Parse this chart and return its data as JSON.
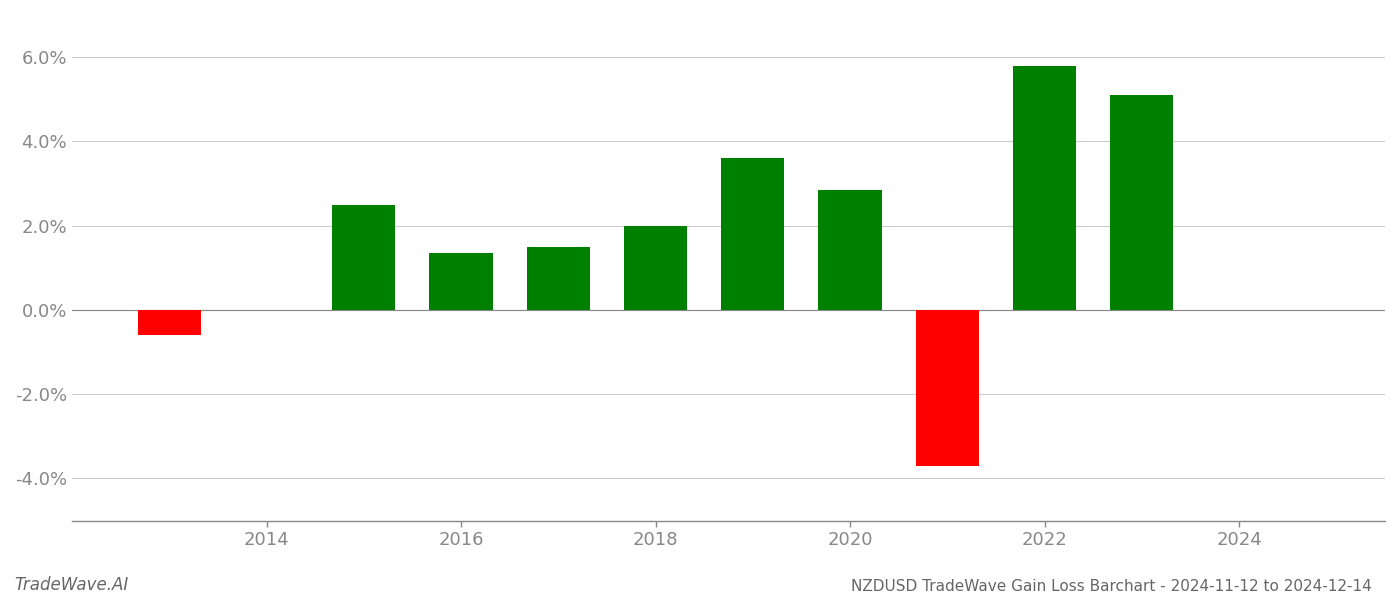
{
  "years": [
    2013,
    2015,
    2016,
    2017,
    2018,
    2019,
    2020,
    2021,
    2022,
    2023
  ],
  "values": [
    -0.006,
    0.025,
    0.0135,
    0.015,
    0.02,
    0.036,
    0.0285,
    -0.037,
    0.058,
    0.051
  ],
  "bar_colors": [
    "#ff0000",
    "#008000",
    "#008000",
    "#008000",
    "#008000",
    "#008000",
    "#008000",
    "#ff0000",
    "#008000",
    "#008000"
  ],
  "title": "NZDUSD TradeWave Gain Loss Barchart - 2024-11-12 to 2024-12-14",
  "watermark": "TradeWave.AI",
  "ylim": [
    -0.05,
    0.07
  ],
  "yticks": [
    -0.04,
    -0.02,
    0.0,
    0.02,
    0.04,
    0.06
  ],
  "xlim": [
    2012.0,
    2025.5
  ],
  "xticks": [
    2014,
    2016,
    2018,
    2020,
    2022,
    2024
  ],
  "background_color": "#ffffff",
  "grid_color": "#cccccc",
  "axis_color": "#888888",
  "tick_color": "#888888",
  "label_color": "#888888",
  "bar_width": 0.65,
  "figsize": [
    14.0,
    6.0
  ],
  "dpi": 100,
  "title_fontsize": 11,
  "tick_fontsize": 13,
  "watermark_fontsize": 12
}
